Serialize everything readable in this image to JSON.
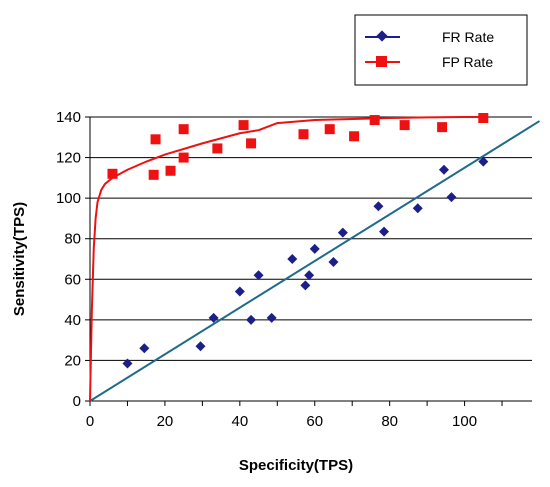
{
  "chart_data": {
    "type": "scatter",
    "title": "",
    "xlabel": "Specificity(TPS)",
    "ylabel": "Sensitivity(TPS)",
    "xlim": [
      0,
      118
    ],
    "ylim": [
      0,
      140
    ],
    "xticks": [
      0,
      20,
      40,
      60,
      80,
      100
    ],
    "yticks": [
      0,
      20,
      40,
      60,
      80,
      100,
      120,
      140
    ],
    "grid": "horizontal",
    "legend_position": "top-right",
    "series": [
      {
        "name": "FR Rate",
        "color": "#1c1f8a",
        "marker": "diamond",
        "x": [
          10,
          14.5,
          29.5,
          33,
          40,
          43,
          45,
          48.5,
          54,
          57.5,
          58.5,
          60,
          65,
          67.5,
          77,
          78.5,
          87.5,
          94.5,
          96.5,
          105
        ],
        "y": [
          18.5,
          26,
          27,
          41,
          54,
          40,
          62,
          41,
          70,
          57,
          62,
          75,
          68.5,
          83,
          96,
          83.5,
          95,
          114,
          100.5,
          118
        ]
      },
      {
        "name": "FP Rate",
        "color": "#ee1111",
        "marker": "square",
        "x": [
          6,
          17,
          17.5,
          21.5,
          25,
          25,
          34,
          41,
          43,
          57,
          64,
          70.5,
          76,
          84,
          94,
          105
        ],
        "y": [
          112,
          111.5,
          129,
          113.5,
          120,
          134,
          124.5,
          136,
          127,
          131.5,
          134,
          130.5,
          138.5,
          136,
          135,
          139.5
        ]
      }
    ],
    "lines": [
      {
        "name": "diagonal",
        "color": "#1f6b8a",
        "x": [
          0,
          120
        ],
        "y": [
          0,
          138
        ]
      },
      {
        "name": "roc-curve",
        "color": "#ee1111",
        "x": [
          0,
          0.5,
          1,
          1.5,
          2,
          3,
          4,
          6,
          10,
          15,
          20,
          30,
          40,
          45,
          50,
          60,
          70,
          80,
          90,
          100,
          105
        ],
        "y": [
          0,
          45,
          75,
          90,
          98,
          104,
          107,
          110,
          114,
          118,
          121.5,
          127,
          132,
          133.5,
          137,
          138.5,
          139,
          139.5,
          139.8,
          140,
          140
        ]
      }
    ]
  }
}
